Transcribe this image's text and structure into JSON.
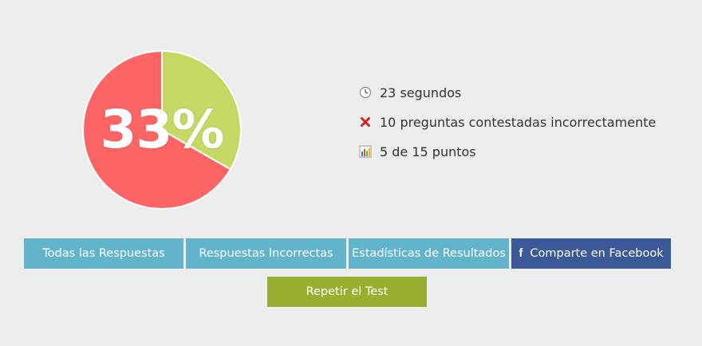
{
  "result": {
    "percent_label": "33%",
    "correct_fraction": 0.333,
    "colors": {
      "correct": "#c6d864",
      "incorrect": "#fd6464",
      "border": "#ffffff"
    }
  },
  "stats": {
    "time": "23 segundos",
    "incorrect": "10 preguntas contestadas incorrectamente",
    "points": "5 de 15 puntos",
    "icons": [
      "clock-icon",
      "red-x-icon",
      "bar-chart-icon"
    ]
  },
  "buttons": {
    "all_answers": "Todas las Respuestas",
    "incorrect_answers": "Respuestas Incorrectas",
    "statistics": "Estadísticas de Resultados",
    "share_facebook": "Comparte en Facebook",
    "repeat_test": "Repetir el Test"
  }
}
